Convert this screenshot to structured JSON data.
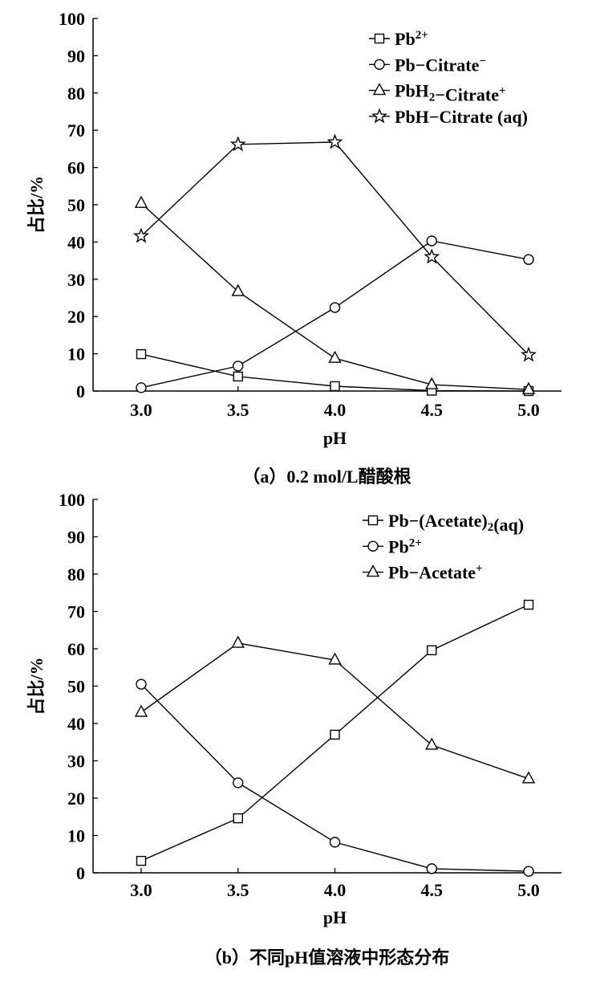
{
  "chart_data": [
    {
      "type": "line",
      "title": "（a）0.2 mol/L醋酸根",
      "xlabel": "pH",
      "ylabel": "占比/%",
      "x": [
        3.0,
        3.5,
        4.0,
        4.5,
        5.0
      ],
      "x_tick_labels": [
        "3.0",
        "3.5",
        "4.0",
        "4.5",
        "5.0"
      ],
      "y_tick_labels": [
        "0",
        "10",
        "20",
        "30",
        "40",
        "50",
        "60",
        "70",
        "80",
        "90",
        "100"
      ],
      "ylim": [
        0,
        100
      ],
      "xlim": [
        2.4,
        5.2
      ],
      "grid": false,
      "legend_position": "top-right",
      "series": [
        {
          "name": "Pb2+",
          "label_parts": [
            [
              "Pb",
              ""
            ],
            [
              "2+",
              "sup"
            ]
          ],
          "marker": "square",
          "values": [
            9.9,
            3.9,
            1.3,
            0.1,
            0.0
          ]
        },
        {
          "name": "Pb-Citrate-",
          "label_parts": [
            [
              "Pb−Citrate",
              ""
            ],
            [
              "−",
              "sup"
            ]
          ],
          "marker": "circle",
          "values": [
            0.9,
            6.7,
            22.4,
            40.3,
            35.3
          ]
        },
        {
          "name": "PbH2-Citrate+",
          "label_parts": [
            [
              "PbH",
              ""
            ],
            [
              "2",
              "sub"
            ],
            [
              "−Citrate",
              ""
            ],
            [
              "+",
              "sup"
            ]
          ],
          "marker": "triangle",
          "values": [
            50.4,
            26.7,
            8.8,
            1.7,
            0.4
          ]
        },
        {
          "name": "PbH-Citrate (aq)",
          "label_parts": [
            [
              "PbH−Citrate (aq)",
              ""
            ]
          ],
          "marker": "star",
          "values": [
            41.6,
            66.2,
            66.8,
            36.0,
            9.7
          ]
        }
      ]
    },
    {
      "type": "line",
      "title": "（b）不同pH值溶液中形态分布",
      "xlabel": "pH",
      "ylabel": "占比/%",
      "x": [
        3.0,
        3.5,
        4.0,
        4.5,
        5.0
      ],
      "x_tick_labels": [
        "3.0",
        "3.5",
        "4.0",
        "4.5",
        "5.0"
      ],
      "y_tick_labels": [
        "0",
        "10",
        "20",
        "30",
        "40",
        "50",
        "60",
        "70",
        "80",
        "90",
        "100"
      ],
      "ylim": [
        0,
        100
      ],
      "xlim": [
        2.4,
        5.2
      ],
      "grid": false,
      "legend_position": "top-right",
      "series": [
        {
          "name": "Pb-(Acetate)2(aq)",
          "label_parts": [
            [
              "Pb−(Acetate)",
              ""
            ],
            [
              "2",
              "sub"
            ],
            [
              "(aq)",
              ""
            ]
          ],
          "marker": "square",
          "values": [
            3.2,
            14.6,
            37.0,
            59.6,
            71.8
          ]
        },
        {
          "name": "Pb2+",
          "label_parts": [
            [
              "Pb",
              ""
            ],
            [
              "2+",
              "sup"
            ]
          ],
          "marker": "circle",
          "values": [
            50.5,
            24.1,
            8.2,
            1.1,
            0.4
          ]
        },
        {
          "name": "Pb-Acetate+",
          "label_parts": [
            [
              "Pb−Acetate",
              ""
            ],
            [
              "+",
              "sup"
            ]
          ],
          "marker": "triangle",
          "values": [
            43.0,
            61.5,
            57.0,
            34.2,
            25.2
          ]
        }
      ]
    }
  ]
}
